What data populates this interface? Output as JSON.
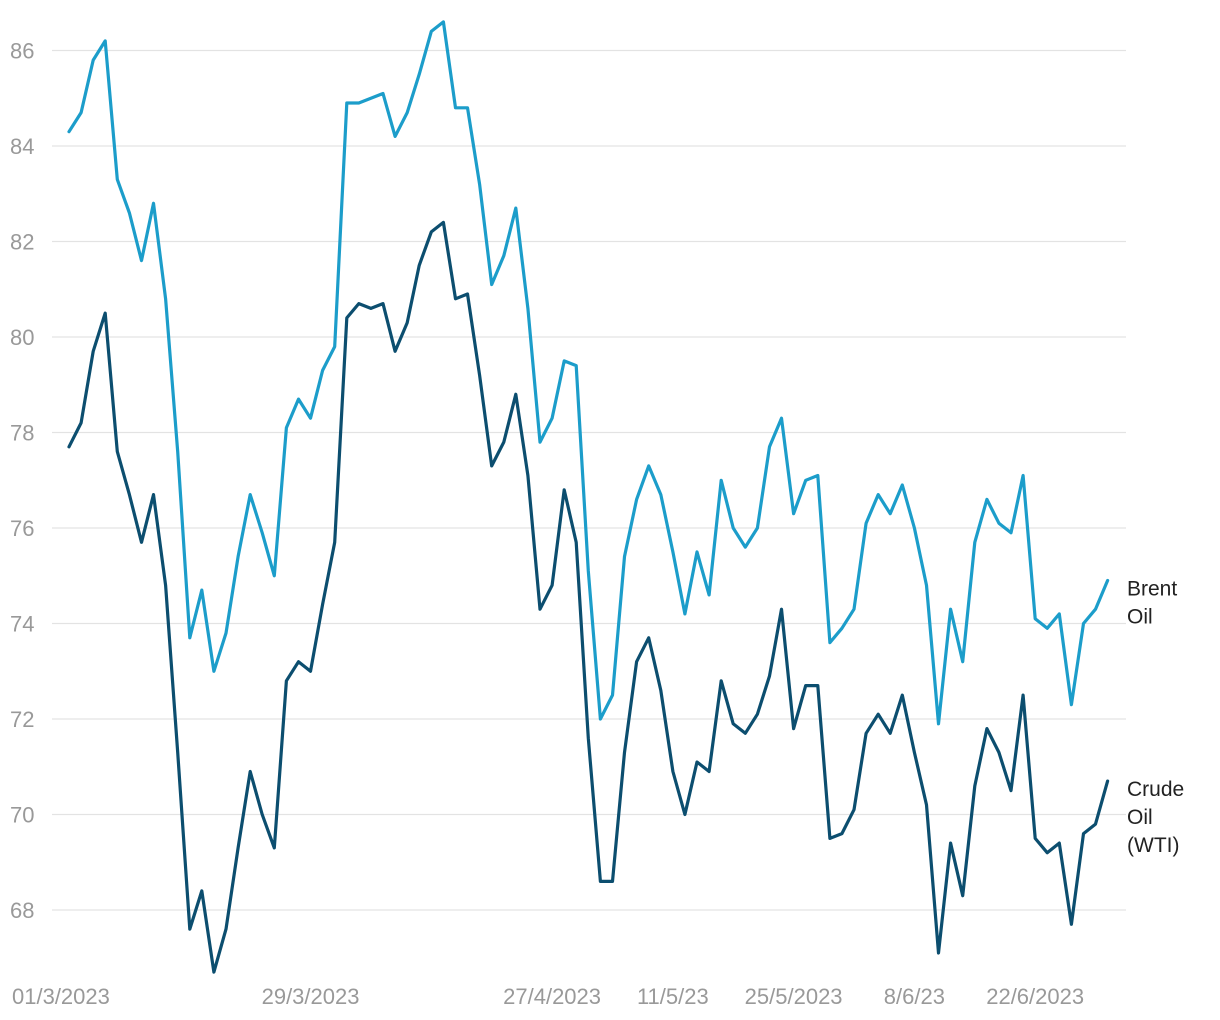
{
  "chart_data": {
    "type": "line",
    "title": "",
    "xlabel": "",
    "ylabel": "",
    "ylim": [
      66.8,
      86.8
    ],
    "yticks": [
      68,
      70,
      72,
      74,
      76,
      78,
      80,
      82,
      84,
      86
    ],
    "grid": "horizontal",
    "legend": "inline labels at right end of lines",
    "x_start": "1/3/2023",
    "x_labels": [
      {
        "index": 0,
        "text": "01/3/2023"
      },
      {
        "index": 20,
        "text": "29/3/2023"
      },
      {
        "index": 40,
        "text": "27/4/2023"
      },
      {
        "index": 50,
        "text": "11/5/23"
      },
      {
        "index": 60,
        "text": "25/5/2023"
      },
      {
        "index": 70,
        "text": "8/6/23"
      },
      {
        "index": 80,
        "text": "22/6/2023"
      }
    ],
    "series": [
      {
        "name": "Brent Oil",
        "label_lines": [
          "Brent",
          "Oil"
        ],
        "color": "#1c9dca",
        "values": [
          84.3,
          84.7,
          85.8,
          86.2,
          83.3,
          82.6,
          81.6,
          82.8,
          80.8,
          77.6,
          73.7,
          74.7,
          73.0,
          73.8,
          75.4,
          76.7,
          75.9,
          75.0,
          78.1,
          78.7,
          78.3,
          79.3,
          79.8,
          84.9,
          84.9,
          85.0,
          85.1,
          84.2,
          84.7,
          85.5,
          86.4,
          86.6,
          84.8,
          84.8,
          83.2,
          81.1,
          81.7,
          82.7,
          80.6,
          77.8,
          78.3,
          79.5,
          79.4,
          75.1,
          72.0,
          72.5,
          75.4,
          76.6,
          77.3,
          76.7,
          75.5,
          74.2,
          75.5,
          74.6,
          77.0,
          76.0,
          75.6,
          76.0,
          77.7,
          78.3,
          76.3,
          77.0,
          77.1,
          73.6,
          73.9,
          74.3,
          76.1,
          76.7,
          76.3,
          76.9,
          76.0,
          74.8,
          71.9,
          74.3,
          73.2,
          75.7,
          76.6,
          76.1,
          75.9,
          77.1,
          74.1,
          73.9,
          74.2,
          72.3,
          74.0,
          74.3,
          74.9
        ]
      },
      {
        "name": "Crude Oil (WTI)",
        "label_lines": [
          "Crude",
          "Oil",
          "(WTI)"
        ],
        "color": "#0c4e6f",
        "values": [
          77.7,
          78.2,
          79.7,
          80.5,
          77.6,
          76.7,
          75.7,
          76.7,
          74.8,
          71.3,
          67.6,
          68.4,
          66.7,
          67.6,
          69.3,
          70.9,
          70.0,
          69.3,
          72.8,
          73.2,
          73.0,
          74.4,
          75.7,
          80.4,
          80.7,
          80.6,
          80.7,
          79.7,
          80.3,
          81.5,
          82.2,
          82.4,
          80.8,
          80.9,
          79.2,
          77.3,
          77.8,
          78.8,
          77.1,
          74.3,
          74.8,
          76.8,
          75.7,
          71.6,
          68.6,
          68.6,
          71.3,
          73.2,
          73.7,
          72.6,
          70.9,
          70.0,
          71.1,
          70.9,
          72.8,
          71.9,
          71.7,
          72.1,
          72.9,
          74.3,
          71.8,
          72.7,
          72.7,
          69.5,
          69.6,
          70.1,
          71.7,
          72.1,
          71.7,
          72.5,
          71.3,
          70.2,
          67.1,
          69.4,
          68.3,
          70.6,
          71.8,
          71.3,
          70.5,
          72.5,
          69.5,
          69.2,
          69.4,
          67.7,
          69.6,
          69.8,
          70.7
        ]
      }
    ]
  }
}
